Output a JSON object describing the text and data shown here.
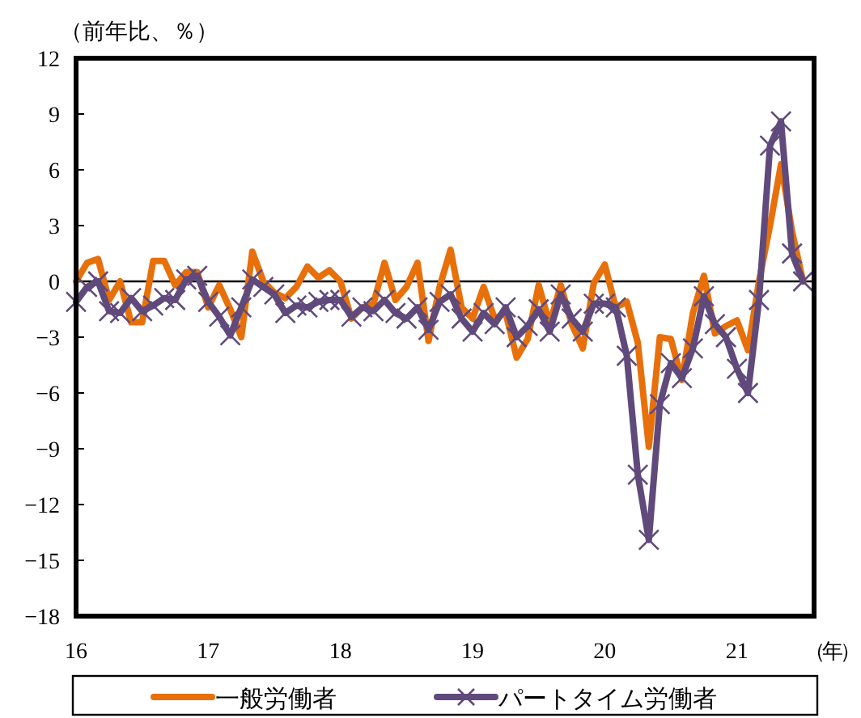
{
  "chart_data": {
    "type": "line",
    "ylabel": "（前年比、％）",
    "xlabel": "（年）",
    "categories": [
      "16",
      null,
      null,
      null,
      null,
      null,
      null,
      null,
      null,
      null,
      null,
      null,
      "17",
      null,
      null,
      null,
      null,
      null,
      null,
      null,
      null,
      null,
      null,
      null,
      "18",
      null,
      null,
      null,
      null,
      null,
      null,
      null,
      null,
      null,
      null,
      null,
      "19",
      null,
      null,
      null,
      null,
      null,
      null,
      null,
      null,
      null,
      null,
      null,
      "20",
      null,
      null,
      null,
      null,
      null,
      null,
      null,
      null,
      null,
      null,
      null,
      "21",
      null,
      null,
      null,
      null,
      null,
      null
    ],
    "ylim": [
      -18,
      12
    ],
    "yticks": [
      -18,
      -15,
      -12,
      -9,
      -6,
      -3,
      0,
      3,
      6,
      9,
      12
    ],
    "ref_lines": [
      {
        "axis": "y",
        "value": 0,
        "color": "#000000"
      }
    ],
    "legend": "bottom",
    "series": [
      {
        "name": "一般労働者",
        "color": "#e8700a",
        "marker": "none",
        "values": [
          0,
          1.0,
          1.2,
          -1.0,
          0,
          -2.2,
          -2.2,
          1.1,
          1.1,
          -0.2,
          0.5,
          0.5,
          -1.4,
          -0.2,
          -1.5,
          -3.0,
          1.6,
          0,
          -0.6,
          -0.9,
          -0.3,
          0.8,
          0.2,
          0.6,
          0,
          -2.0,
          -1.4,
          -1.2,
          1.0,
          -1.0,
          -0.3,
          1.0,
          -3.2,
          -0.3,
          1.7,
          -1.4,
          -2.0,
          -0.3,
          -2.0,
          -1.7,
          -4.1,
          -3.1,
          -0.2,
          -2.3,
          -0.2,
          -2.3,
          -3.6,
          -0.1,
          0.9,
          -1.4,
          -1.1,
          -3.3,
          -8.9,
          -3.0,
          -3.1,
          -5.3,
          -1.7,
          0.3,
          -2.8,
          -2.4,
          -2.1,
          -3.7,
          0,
          3.0,
          6.3,
          2.7,
          0
        ]
      },
      {
        "name": "パートタイム労働者",
        "color": "#604a7b",
        "marker": "cross",
        "values": [
          -1.1,
          -0.3,
          0,
          -1.6,
          -1.7,
          -0.9,
          -1.6,
          -1.3,
          -0.9,
          -1.0,
          0.1,
          0.3,
          -1.1,
          -1.9,
          -2.9,
          -1.4,
          0.1,
          -0.3,
          -0.7,
          -1.7,
          -1.3,
          -1.4,
          -1.1,
          -1.0,
          -1.0,
          -1.9,
          -1.4,
          -1.6,
          -1.0,
          -1.7,
          -2.0,
          -1.4,
          -2.6,
          -1.1,
          -0.7,
          -2.0,
          -2.7,
          -1.7,
          -2.3,
          -1.4,
          -3.0,
          -2.4,
          -1.5,
          -2.7,
          -0.7,
          -2.0,
          -2.7,
          -1.2,
          -1.2,
          -1.4,
          -4.0,
          -10.4,
          -13.9,
          -6.6,
          -4.4,
          -5.2,
          -3.6,
          -0.8,
          -2.3,
          -3.0,
          -4.7,
          -6.0,
          -1.0,
          7.3,
          8.6,
          1.5,
          0
        ]
      }
    ]
  }
}
